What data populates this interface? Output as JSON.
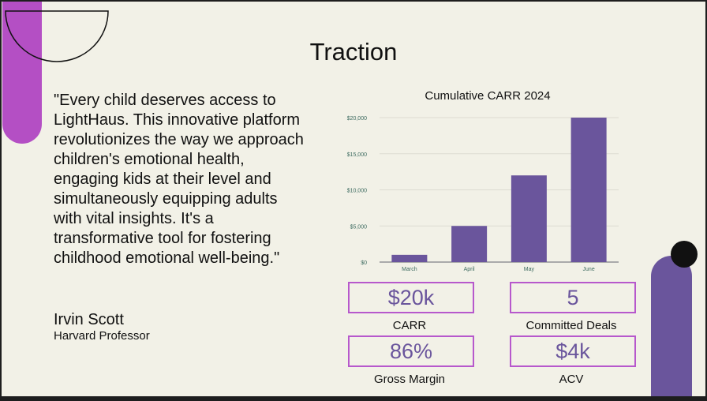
{
  "slide": {
    "title": "Traction",
    "quote": "\"Every child deserves access to LightHaus. This innovative platform revolutionizes the way we approach children's emotional health, engaging kids at their level and simultaneously equipping adults with vital insights. It's a transformative tool for fostering childhood emotional well-being.\"",
    "author": "Irvin Scott",
    "author_role": "Harvard Professor"
  },
  "metrics": [
    {
      "value": "$20k",
      "label": "CARR"
    },
    {
      "value": "5",
      "label": "Committed Deals"
    },
    {
      "value": "86%",
      "label": "Gross Margin"
    },
    {
      "value": "$4k",
      "label": "ACV"
    }
  ],
  "colors": {
    "background": "#f2f1e7",
    "purple": "#6a559c",
    "magenta": "#b44fc4"
  },
  "chart_data": {
    "type": "bar",
    "title": "Cumulative CARR 2024",
    "categories": [
      "March",
      "April",
      "May",
      "June"
    ],
    "values": [
      1000,
      5000,
      12000,
      20000
    ],
    "ylim": [
      0,
      20000
    ],
    "yticks": [
      0,
      5000,
      10000,
      15000,
      20000
    ],
    "ytick_labels": [
      "$0",
      "$5,000",
      "$10,000",
      "$15,000",
      "$20,000"
    ],
    "xlabel": "",
    "ylabel": "",
    "grid": true
  }
}
